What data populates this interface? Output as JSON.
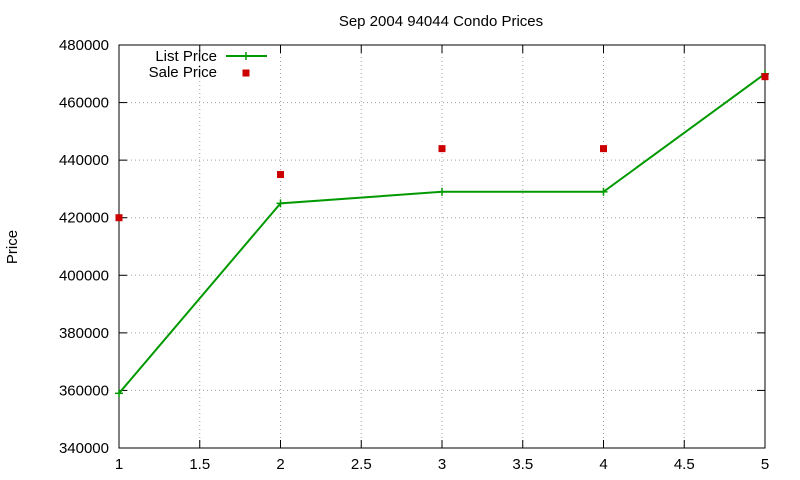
{
  "chart_data": {
    "type": "line",
    "title": "Sep 2004 94044 Condo Prices",
    "xlabel": "",
    "ylabel": "Price",
    "xlim": [
      1,
      5
    ],
    "ylim": [
      340000,
      480000
    ],
    "xticks": [
      "1",
      "1.5",
      "2",
      "2.5",
      "3",
      "3.5",
      "4",
      "4.5",
      "5"
    ],
    "yticks": [
      "340000",
      "360000",
      "380000",
      "400000",
      "420000",
      "440000",
      "460000",
      "480000"
    ],
    "grid": true,
    "legend_position": "top-left",
    "series": [
      {
        "name": "List Price",
        "style": "line+cross",
        "color": "#009900",
        "x": [
          1,
          2,
          3,
          4,
          5
        ],
        "y": [
          359000,
          425000,
          429000,
          429000,
          470000
        ]
      },
      {
        "name": "Sale Price",
        "style": "square",
        "color": "#cc0000",
        "x": [
          1,
          2,
          3,
          4,
          5
        ],
        "y": [
          420000,
          435000,
          444000,
          444000,
          469000
        ]
      }
    ]
  }
}
